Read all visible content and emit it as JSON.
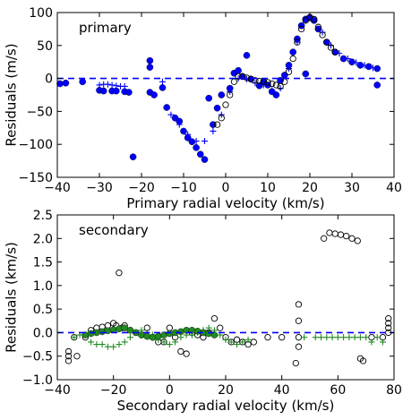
{
  "chart_data": [
    {
      "type": "scatter",
      "title": "",
      "annotation": "primary",
      "xlabel": "Primary radial velocity (km/s)",
      "ylabel": "Residuals (m/s)",
      "xlim": [
        -40,
        40
      ],
      "ylim": [
        -150,
        100
      ],
      "x_ticks": [
        -40,
        -30,
        -20,
        -10,
        0,
        10,
        20,
        30,
        40
      ],
      "y_ticks": [
        -150,
        -100,
        -50,
        0,
        50,
        100
      ],
      "x_tick_labels": [
        "−40",
        "−30",
        "−20",
        "−10",
        "0",
        "10",
        "20",
        "30",
        "40"
      ],
      "y_tick_labels": [
        "−150",
        "−100",
        "−50",
        "0",
        "50",
        "100"
      ],
      "reference_line": {
        "y": 0,
        "style": "dashed",
        "color": "#0000ff"
      },
      "colors": {
        "dots": "#0000ff",
        "plus": "#0000ff",
        "open": "#000000"
      },
      "series": [
        {
          "marker": "filled-circle",
          "points": [
            [
              -41,
              -8
            ],
            [
              -38,
              -7
            ],
            [
              -34,
              -5
            ],
            [
              -30,
              -18
            ],
            [
              -29,
              -19
            ],
            [
              -27,
              -19
            ],
            [
              -26,
              -19
            ],
            [
              -24,
              -20
            ],
            [
              -23,
              -21
            ],
            [
              -22,
              -119
            ],
            [
              -18,
              27
            ],
            [
              -18,
              17
            ],
            [
              -18,
              -21
            ],
            [
              -17,
              -25
            ],
            [
              -15,
              -14
            ],
            [
              -14,
              -44
            ],
            [
              -12,
              -60
            ],
            [
              -11,
              -65
            ],
            [
              -10,
              -80
            ],
            [
              -9,
              -90
            ],
            [
              -8,
              -96
            ],
            [
              -7,
              -105
            ],
            [
              -6,
              -115
            ],
            [
              -5,
              -123
            ],
            [
              -3,
              -70
            ],
            [
              -2,
              -45
            ],
            [
              1,
              -15
            ],
            [
              2,
              8
            ],
            [
              3,
              12
            ],
            [
              4,
              3
            ],
            [
              6,
              -1
            ],
            [
              8,
              -11
            ],
            [
              9,
              -5
            ],
            [
              10,
              -10
            ],
            [
              12,
              -25
            ],
            [
              13,
              -3
            ],
            [
              14,
              5
            ],
            [
              15,
              20
            ],
            [
              16,
              40
            ],
            [
              17,
              60
            ],
            [
              18,
              80
            ],
            [
              19,
              90
            ],
            [
              20,
              92
            ],
            [
              21,
              88
            ],
            [
              22,
              75
            ],
            [
              24,
              55
            ],
            [
              26,
              40
            ],
            [
              28,
              30
            ],
            [
              30,
              25
            ],
            [
              32,
              20
            ],
            [
              34,
              18
            ],
            [
              36,
              15
            ],
            [
              36,
              -10
            ],
            [
              19,
              7
            ],
            [
              5,
              35
            ],
            [
              -4,
              -30
            ],
            [
              -1,
              -25
            ],
            [
              11,
              -20
            ]
          ]
        },
        {
          "marker": "plus",
          "points": [
            [
              -30,
              -10
            ],
            [
              -29,
              -9
            ],
            [
              -28,
              -9
            ],
            [
              -27,
              -10
            ],
            [
              -26,
              -11
            ],
            [
              -25,
              -12
            ],
            [
              -24,
              -12
            ],
            [
              -15,
              -5
            ],
            [
              -13,
              -55
            ],
            [
              -11,
              -70
            ],
            [
              -9,
              -85
            ],
            [
              -7,
              -95
            ],
            [
              -5,
              -95
            ],
            [
              -3,
              -80
            ],
            [
              -1,
              -55
            ],
            [
              1,
              -20
            ],
            [
              3,
              0
            ],
            [
              5,
              -1
            ],
            [
              7,
              -7
            ],
            [
              9,
              -10
            ],
            [
              11,
              -18
            ],
            [
              13,
              -15
            ],
            [
              15,
              15
            ],
            [
              17,
              55
            ],
            [
              19,
              88
            ],
            [
              21,
              90
            ],
            [
              23,
              70
            ],
            [
              25,
              50
            ],
            [
              27,
              38
            ],
            [
              29,
              30
            ],
            [
              31,
              24
            ],
            [
              33,
              20
            ],
            [
              35,
              16
            ]
          ]
        },
        {
          "marker": "open-circle",
          "points": [
            [
              -2,
              -70
            ],
            [
              -1,
              -60
            ],
            [
              0,
              -40
            ],
            [
              1,
              -25
            ],
            [
              2,
              -5
            ],
            [
              3,
              3
            ],
            [
              4,
              3
            ],
            [
              5,
              1
            ],
            [
              6,
              -1
            ],
            [
              7,
              -3
            ],
            [
              8,
              -4
            ],
            [
              9,
              -5
            ],
            [
              10,
              -6
            ],
            [
              11,
              -8
            ],
            [
              12,
              -10
            ],
            [
              13,
              -12
            ],
            [
              14,
              -5
            ],
            [
              15,
              10
            ],
            [
              16,
              30
            ],
            [
              17,
              55
            ],
            [
              18,
              75
            ],
            [
              19,
              88
            ],
            [
              20,
              93
            ],
            [
              21,
              90
            ],
            [
              22,
              78
            ],
            [
              23,
              66
            ],
            [
              24,
              55
            ],
            [
              25,
              47
            ],
            [
              26,
              40
            ]
          ]
        }
      ]
    },
    {
      "type": "scatter",
      "title": "",
      "annotation": "secondary",
      "xlabel": "Secondary radial velocity (km/s)",
      "ylabel": "Residuals (km/s)",
      "xlim": [
        -40,
        80
      ],
      "ylim": [
        -1.0,
        2.5
      ],
      "x_ticks": [
        -40,
        -20,
        0,
        20,
        40,
        60,
        80
      ],
      "y_ticks": [
        -1.0,
        -0.5,
        0.0,
        0.5,
        1.0,
        1.5,
        2.0,
        2.5
      ],
      "x_tick_labels": [
        "−40",
        "−20",
        "0",
        "20",
        "40",
        "60",
        "80"
      ],
      "y_tick_labels": [
        "−1.0",
        "−0.5",
        "0.0",
        "0.5",
        "1.0",
        "1.5",
        "2.0",
        "2.5"
      ],
      "reference_line": {
        "y": 0,
        "style": "dashed",
        "color": "#0000ff"
      },
      "colors": {
        "plus": "#228b22",
        "open": "#000000",
        "dots": "#228b22"
      },
      "series": [
        {
          "marker": "open-circle",
          "points": [
            [
              -36,
              -0.4
            ],
            [
              -36,
              -0.5
            ],
            [
              -36,
              -0.6
            ],
            [
              -34,
              -0.1
            ],
            [
              -33,
              -0.5
            ],
            [
              -30,
              -0.1
            ],
            [
              -28,
              0.05
            ],
            [
              -26,
              0.1
            ],
            [
              -24,
              0.12
            ],
            [
              -22,
              0.15
            ],
            [
              -20,
              0.2
            ],
            [
              -19,
              0.15
            ],
            [
              -18,
              1.27
            ],
            [
              -17,
              0.1
            ],
            [
              -16,
              0.15
            ],
            [
              -14,
              0.05
            ],
            [
              -12,
              0.0
            ],
            [
              -10,
              -0.05
            ],
            [
              -8,
              0.1
            ],
            [
              -6,
              -0.1
            ],
            [
              -4,
              -0.2
            ],
            [
              -2,
              -0.2
            ],
            [
              0,
              0.1
            ],
            [
              2,
              -0.1
            ],
            [
              4,
              -0.4
            ],
            [
              6,
              -0.45
            ],
            [
              8,
              0.0
            ],
            [
              10,
              -0.05
            ],
            [
              12,
              -0.1
            ],
            [
              14,
              0.0
            ],
            [
              16,
              0.3
            ],
            [
              18,
              0.1
            ],
            [
              20,
              -0.1
            ],
            [
              22,
              -0.2
            ],
            [
              24,
              -0.15
            ],
            [
              26,
              -0.2
            ],
            [
              28,
              -0.25
            ],
            [
              30,
              -0.2
            ],
            [
              35,
              -0.1
            ],
            [
              40,
              -0.1
            ],
            [
              46,
              0.6
            ],
            [
              46,
              0.25
            ],
            [
              46,
              -0.1
            ],
            [
              46,
              -0.3
            ],
            [
              45,
              -0.65
            ],
            [
              55,
              2.0
            ],
            [
              57,
              2.12
            ],
            [
              59,
              2.1
            ],
            [
              61,
              2.08
            ],
            [
              63,
              2.05
            ],
            [
              65,
              2.0
            ],
            [
              67,
              1.95
            ],
            [
              68,
              -0.55
            ],
            [
              69,
              -0.6
            ],
            [
              72,
              -0.1
            ],
            [
              76,
              -0.1
            ],
            [
              78,
              0.3
            ],
            [
              78,
              0.2
            ],
            [
              78,
              0.1
            ],
            [
              78,
              0.0
            ]
          ]
        },
        {
          "marker": "plus",
          "points": [
            [
              -34,
              -0.1
            ],
            [
              -32,
              -0.05
            ],
            [
              -28,
              -0.2
            ],
            [
              -26,
              -0.25
            ],
            [
              -24,
              -0.25
            ],
            [
              -22,
              -0.3
            ],
            [
              -20,
              -0.3
            ],
            [
              -18,
              -0.25
            ],
            [
              -16,
              -0.2
            ],
            [
              -14,
              -0.1
            ],
            [
              -12,
              0.0
            ],
            [
              -10,
              0.05
            ],
            [
              -8,
              0.0
            ],
            [
              -6,
              -0.05
            ],
            [
              -4,
              -0.15
            ],
            [
              -2,
              -0.2
            ],
            [
              0,
              -0.25
            ],
            [
              2,
              -0.2
            ],
            [
              4,
              -0.1
            ],
            [
              6,
              -0.05
            ],
            [
              8,
              -0.05
            ],
            [
              10,
              0.0
            ],
            [
              12,
              0.05
            ],
            [
              14,
              0.1
            ],
            [
              16,
              0.05
            ],
            [
              18,
              -0.05
            ],
            [
              20,
              -0.15
            ],
            [
              22,
              -0.2
            ],
            [
              24,
              -0.25
            ],
            [
              26,
              -0.2
            ],
            [
              28,
              -0.15
            ],
            [
              48,
              -0.1
            ],
            [
              52,
              -0.1
            ],
            [
              54,
              -0.1
            ],
            [
              56,
              -0.1
            ],
            [
              58,
              -0.1
            ],
            [
              60,
              -0.1
            ],
            [
              62,
              -0.1
            ],
            [
              64,
              -0.1
            ],
            [
              66,
              -0.1
            ],
            [
              68,
              -0.1
            ],
            [
              70,
              -0.1
            ],
            [
              72,
              -0.2
            ],
            [
              74,
              -0.1
            ],
            [
              76,
              -0.2
            ]
          ]
        },
        {
          "marker": "filled-circle",
          "points": [
            [
              -30,
              -0.05
            ],
            [
              -28,
              -0.02
            ],
            [
              -26,
              0.0
            ],
            [
              -24,
              0.02
            ],
            [
              -22,
              0.04
            ],
            [
              -20,
              0.06
            ],
            [
              -18,
              0.08
            ],
            [
              -16,
              0.1
            ],
            [
              -14,
              0.05
            ],
            [
              -12,
              0.0
            ],
            [
              -10,
              -0.05
            ],
            [
              -8,
              -0.08
            ],
            [
              -6,
              -0.1
            ],
            [
              -4,
              -0.08
            ],
            [
              -2,
              -0.05
            ],
            [
              0,
              -0.02
            ],
            [
              2,
              0.0
            ],
            [
              4,
              0.02
            ],
            [
              6,
              0.05
            ],
            [
              8,
              0.05
            ],
            [
              10,
              0.03
            ],
            [
              12,
              0.0
            ],
            [
              14,
              -0.02
            ],
            [
              16,
              -0.05
            ]
          ]
        }
      ]
    }
  ]
}
